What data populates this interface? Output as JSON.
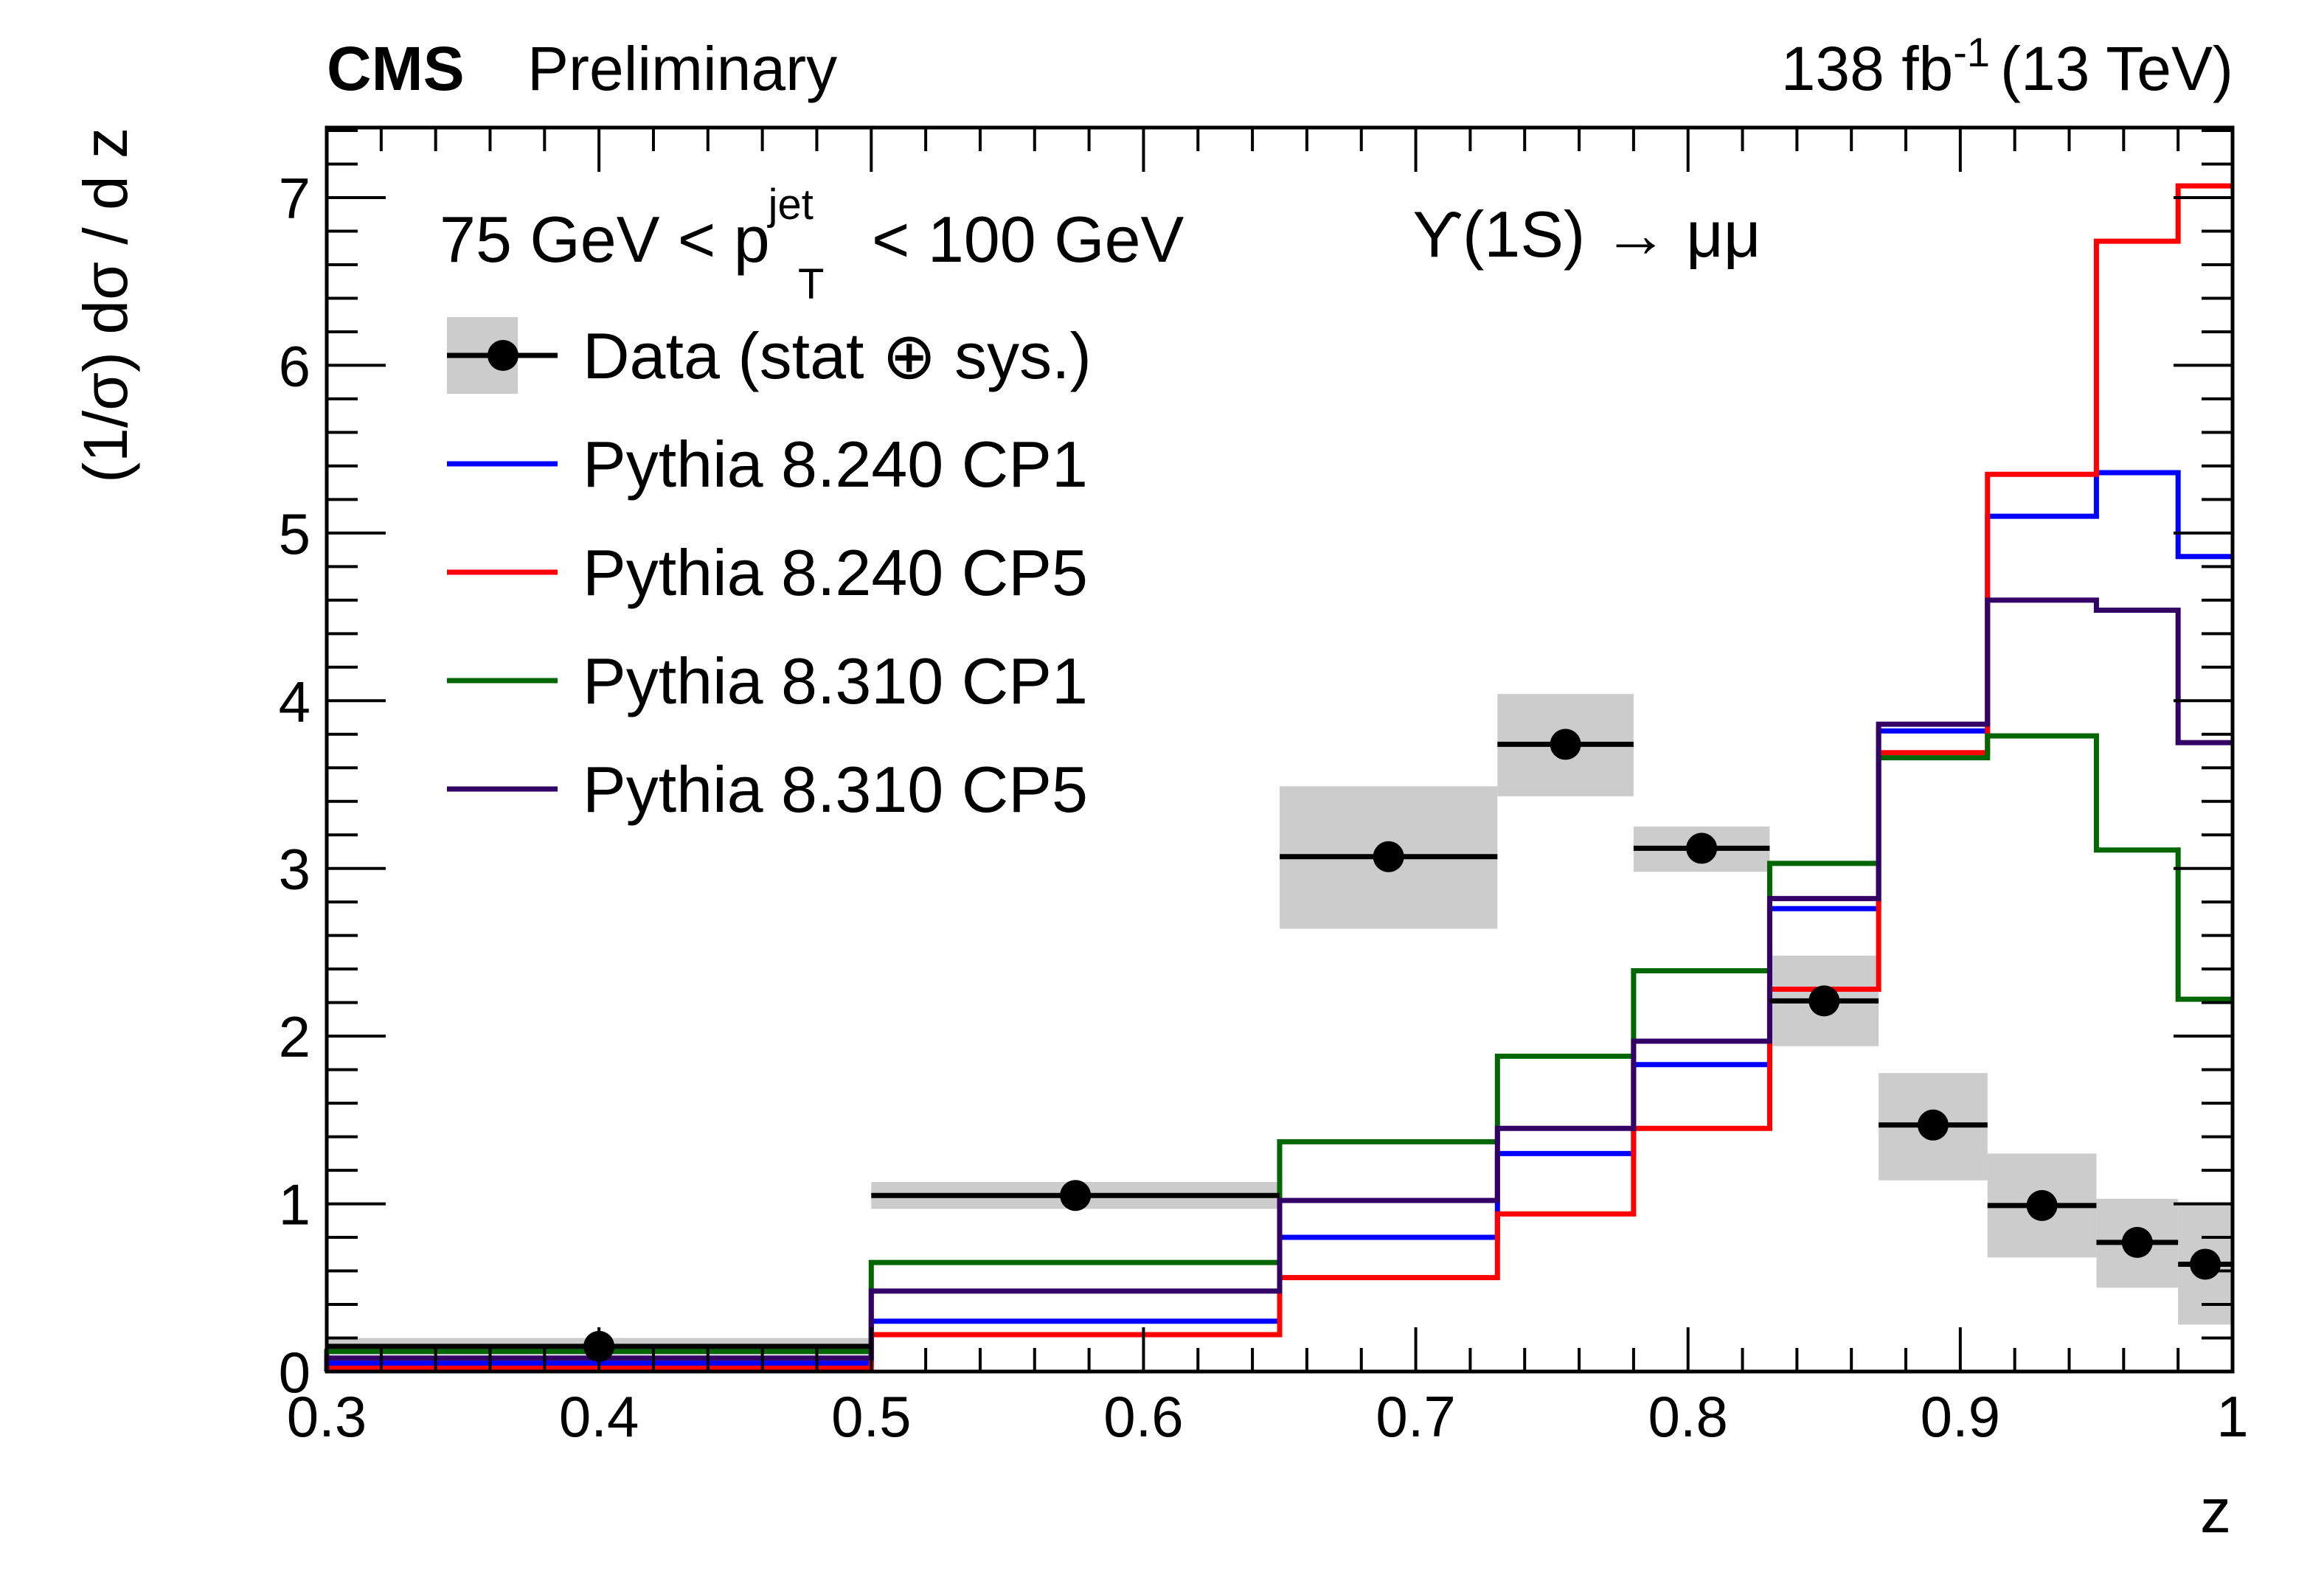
{
  "chart_data": {
    "type": "line",
    "header": {
      "experiment": "CMS",
      "status": "Preliminary",
      "lumi": "138 fb",
      "lumi_exp": "-1",
      "energy": "(13 TeV)"
    },
    "annotations": {
      "pt_range_pre": "75 GeV < p",
      "pt_sup": "jet",
      "pt_sub": "T",
      "pt_range_post": "< 100 GeV",
      "decay": "ϒ(1S) → μμ"
    },
    "xlabel": "z",
    "ylabel": "(1/σ) dσ / d z",
    "xlim": [
      0.3,
      1.0
    ],
    "ylim": [
      0,
      7.4
    ],
    "xticks": [
      "0.3",
      "0.4",
      "0.5",
      "0.6",
      "0.7",
      "0.8",
      "0.9",
      "1"
    ],
    "yticks": [
      "0",
      "1",
      "2",
      "3",
      "4",
      "5",
      "6",
      "7"
    ],
    "grid": false,
    "legend_position": "top-left",
    "bin_edges": [
      0.3,
      0.5,
      0.65,
      0.73,
      0.78,
      0.83,
      0.87,
      0.91,
      0.95,
      0.98,
      1.0
    ],
    "data": {
      "name": "Data (stat ⊕ sys.)",
      "x": [
        0.4,
        0.575,
        0.69,
        0.755,
        0.805,
        0.85,
        0.89,
        0.93,
        0.965,
        0.99
      ],
      "y": [
        0.15,
        1.05,
        3.07,
        3.74,
        3.12,
        2.21,
        1.47,
        0.99,
        0.77,
        0.64
      ],
      "err_low": [
        0.05,
        0.08,
        0.43,
        0.31,
        0.14,
        0.27,
        0.33,
        0.31,
        0.27,
        0.36
      ],
      "err_high": [
        0.05,
        0.08,
        0.42,
        0.3,
        0.13,
        0.27,
        0.31,
        0.31,
        0.26,
        0.37
      ],
      "color": "#000000",
      "band_color": "#cccccc"
    },
    "series": [
      {
        "name": "Pythia 8.240 CP1",
        "color": "#0000ff",
        "values": [
          0.05,
          0.3,
          0.8,
          1.3,
          1.83,
          2.76,
          3.82,
          5.1,
          5.36,
          4.86
        ]
      },
      {
        "name": "Pythia 8.240 CP5",
        "color": "#ff0000",
        "values": [
          0.02,
          0.22,
          0.56,
          0.94,
          1.45,
          2.28,
          3.69,
          5.35,
          6.74,
          7.07
        ]
      },
      {
        "name": "Pythia 8.310 CP1",
        "color": "#006600",
        "values": [
          0.12,
          0.65,
          1.37,
          1.88,
          2.39,
          3.03,
          3.66,
          3.79,
          3.11,
          2.22
        ]
      },
      {
        "name": "Pythia 8.310 CP5",
        "color": "#330066",
        "values": [
          0.08,
          0.48,
          1.02,
          1.45,
          1.97,
          2.82,
          3.86,
          4.6,
          4.54,
          3.75
        ]
      }
    ]
  }
}
